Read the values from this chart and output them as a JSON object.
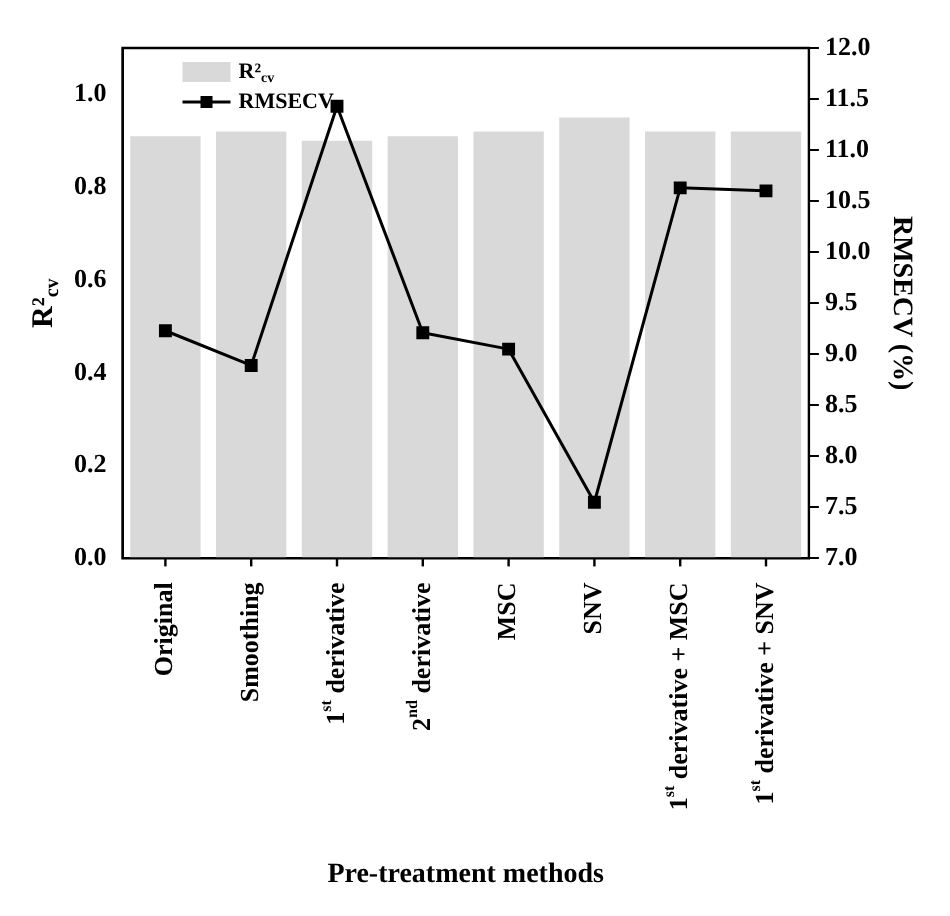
{
  "chart_data": {
    "type": "bar",
    "categories": [
      "Original",
      "Smoothing",
      "1$^{st}$ derivative",
      "2$^{nd}$ derivative",
      "MSC",
      "SNV",
      "1$^{st}$ derivative + MSC",
      "1$^{st}$ derivative + SNV"
    ],
    "series": [
      {
        "name": "R²$_{cv}$",
        "color": "#d9d9d9",
        "values": [
          0.91,
          0.92,
          0.9,
          0.91,
          0.92,
          0.95,
          0.92,
          0.92
        ]
      },
      {
        "name": "RMSECV",
        "type": "line",
        "axis": "y2",
        "color": "#000000",
        "values": [
          9.23,
          8.89,
          11.43,
          9.21,
          9.05,
          7.55,
          10.63,
          10.6
        ]
      }
    ],
    "xlabel": "Pre-treatment methods",
    "ylabel": "R²$_{cv}$",
    "y2label": "RMSECV (%)",
    "ylim": [
      0,
      1.1
    ],
    "yticks": [
      {
        "value": 0,
        "label": "0.0"
      },
      {
        "value": 0.2,
        "label": "0.2"
      },
      {
        "value": 0.4,
        "label": "0.4"
      },
      {
        "value": 0.6,
        "label": "0.6"
      },
      {
        "value": 0.8,
        "label": "0.8"
      },
      {
        "value": 1,
        "label": "1.0"
      }
    ],
    "y2lim": [
      7,
      12
    ],
    "y2ticks": [
      {
        "value": 7,
        "label": "7.0"
      },
      {
        "value": 7.5,
        "label": "7.5"
      },
      {
        "value": 8,
        "label": "8.0"
      },
      {
        "value": 8.5,
        "label": "8.5"
      },
      {
        "value": 9,
        "label": "9.0"
      },
      {
        "value": 9.5,
        "label": "9.5"
      },
      {
        "value": 10,
        "label": "10.0"
      },
      {
        "value": 10.5,
        "label": "10.5"
      },
      {
        "value": 11,
        "label": "11.0"
      },
      {
        "value": 11.5,
        "label": "11.5"
      },
      {
        "value": 12,
        "label": "12.0"
      }
    ],
    "legend": "top left",
    "marker": "square",
    "grid": false
  }
}
